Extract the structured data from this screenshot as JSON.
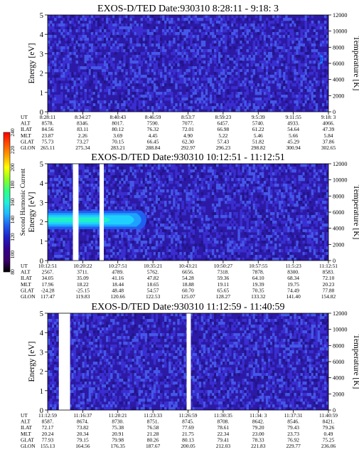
{
  "colorbar": {
    "label": "Second Harmonic Current",
    "ticks": [
      "80",
      "100",
      "120",
      "140",
      "160",
      "180",
      "200",
      "220",
      "240"
    ],
    "colors": [
      "#000000",
      "#3a006a",
      "#35008f",
      "#2020c8",
      "#1f5ef0",
      "#1fb8ff",
      "#20f0d8",
      "#30ff80",
      "#90ff20",
      "#ffff00",
      "#ffa000",
      "#ff5000",
      "#ff0000"
    ]
  },
  "chart_data": [
    {
      "type": "heatmap",
      "title": "EXOS-D/TED   Date:930310   8:28:11 - 9:18: 3",
      "ylabel": "Energy [eV]",
      "y2label": "Temperature [K]",
      "ylim": [
        0,
        5
      ],
      "y2lim": [
        0,
        12000
      ],
      "yticks": [
        "0",
        "1",
        "2",
        "3",
        "4",
        "5"
      ],
      "y2ticks": [
        "0",
        "2000",
        "4000",
        "6000",
        "8000",
        "10000",
        "12000"
      ],
      "gaps_fraction": [],
      "band": {
        "note": "",
        "x_start_frac": 0.97,
        "x_end_frac": 1.0,
        "y_center_eV": 2.7,
        "level": 0.45
      },
      "table": {
        "labels": [
          "UT",
          "ALT",
          "ILAT",
          "MLT",
          "GLAT",
          "GLON"
        ],
        "columns": [
          [
            "8:28:11",
            "8578.",
            "84.56",
            "23.87",
            "75.73",
            "265.11"
          ],
          [
            "8:34:27",
            "8346.",
            "83.11",
            "2.26",
            "73.27",
            "275.34"
          ],
          [
            "8:40:43",
            "8017.",
            "80.12",
            "3.69",
            "70.15",
            "283.21"
          ],
          [
            "8:46:59",
            "7590.",
            "76.32",
            "4.45",
            "66.45",
            "288.84"
          ],
          [
            "8:53:7",
            "7077.",
            "72.01",
            "4.90",
            "62.30",
            "292.97"
          ],
          [
            "8:59:23",
            "6457.",
            "66.98",
            "5.22",
            "57.43",
            "296.23"
          ],
          [
            "9:5:39",
            "5740.",
            "61.22",
            "5.46",
            "51.82",
            "298.82"
          ],
          [
            "9:11:55",
            "4933.",
            "54.64",
            "5.66",
            "45.29",
            "300.94"
          ],
          [
            "9:18: 3",
            "4066.",
            "47.39",
            "5.84",
            "37.86",
            "302.65"
          ]
        ]
      }
    },
    {
      "type": "heatmap",
      "title": "EXOS-D/TED   Date:930310   10:12:51 - 11:12:51",
      "ylabel": "Energy [eV]",
      "y2label": "Temperature [K]",
      "ylim": [
        0,
        5
      ],
      "y2lim": [
        0,
        12000
      ],
      "yticks": [
        "0",
        "1",
        "2",
        "3",
        "4",
        "5"
      ],
      "y2ticks": [
        "0",
        "2000",
        "4000",
        "6000",
        "8000",
        "10000",
        "12000"
      ],
      "gaps_fraction": [
        [
          0.09,
          0.11
        ],
        [
          0.185,
          0.2
        ]
      ],
      "band": {
        "note": "",
        "x_start_frac": 0.0,
        "x_end_frac": 0.37,
        "y_center_eV": 2.1,
        "level": 1.0
      },
      "table": {
        "labels": [
          "UT",
          "ALT",
          "ILAT",
          "MLT",
          "GLAT",
          "GLON"
        ],
        "columns": [
          [
            "10:12:51",
            "2567.",
            "34.05",
            "17.96",
            "-24.28",
            "117.47"
          ],
          [
            "10:20:22",
            "3711.",
            "35.09",
            "18.22",
            "-25.15",
            "119.83"
          ],
          [
            "10:27:51",
            "4789.",
            "41.16",
            "18.44",
            "48.48",
            "120.66"
          ],
          [
            "10:35:21",
            "5762.",
            "47.82",
            "18.65",
            "54.57",
            "122.53"
          ],
          [
            "10:43:21",
            "6656.",
            "54.28",
            "18.88",
            "60.70",
            "125.07"
          ],
          [
            "10:50:27",
            "7318.",
            "59.36",
            "19.11",
            "65.65",
            "128.27"
          ],
          [
            "10:57:55",
            "7878.",
            "64.10",
            "19.39",
            "70.35",
            "133.32"
          ],
          [
            "11:5:23",
            "8300.",
            "68.34",
            "19.75",
            "74.49",
            "141.40"
          ],
          [
            "11:12:51",
            "8583.",
            "72.10",
            "20.23",
            "77.88",
            "154.82"
          ]
        ]
      }
    },
    {
      "type": "heatmap",
      "title": "EXOS-D/TED   Date:930310   11:12:59 - 11:40:59",
      "ylabel": "Energy [eV]",
      "y2label": "Temperature [K]",
      "ylim": [
        0,
        5
      ],
      "y2lim": [
        0,
        12000
      ],
      "yticks": [
        "0",
        "1",
        "2",
        "3",
        "4",
        "5"
      ],
      "y2ticks": [
        "0",
        "2000",
        "4000",
        "6000",
        "8000",
        "10000",
        "12000"
      ],
      "gaps_fraction": [
        [
          0.04,
          0.08
        ],
        [
          0.495,
          0.51
        ]
      ],
      "band": {
        "note": "",
        "x_start_frac": 0.0,
        "x_end_frac": 0.0,
        "y_center_eV": 2.0,
        "level": 0.0
      },
      "table": {
        "labels": [
          "UT",
          "ALT",
          "ILAT",
          "MLT",
          "GLAT",
          "GLON"
        ],
        "columns": [
          [
            "11:12:59",
            "8587.",
            "72.17",
            "20.24",
            "77.93",
            "155.13"
          ],
          [
            "11:16:37",
            "8674.",
            "73.82",
            "20.34",
            "79.15",
            "164.56"
          ],
          [
            "11:20:21",
            "8730.",
            "75.38",
            "20.91",
            "79.98",
            "176.35"
          ],
          [
            "11:23:33",
            "8751.",
            "76.58",
            "21.28",
            "80.26",
            "187.67"
          ],
          [
            "11:26:59",
            "8745.",
            "77.69",
            "21.75",
            "80.13",
            "200.05"
          ],
          [
            "11:30:35",
            "8708.",
            "78.61",
            "22.34",
            "79.41",
            "212.03"
          ],
          [
            "11:34: 3",
            "8642.",
            "79.20",
            "23.00",
            "78.33",
            "221.83"
          ],
          [
            "11:37:31",
            "8546.",
            "79.43",
            "23.73",
            "76.92",
            "229.77"
          ],
          [
            "11:40:59",
            "8421.",
            "79.26",
            "0.49",
            "75.25",
            "236.06"
          ]
        ]
      }
    }
  ]
}
